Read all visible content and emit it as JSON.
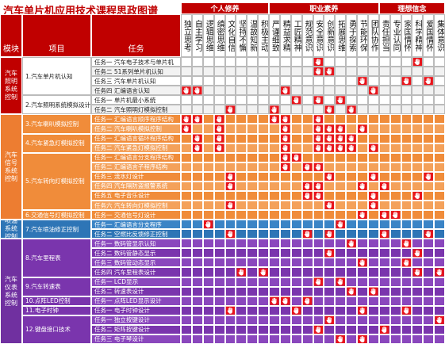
{
  "header": {
    "title": "汽车单片机应用技术课程思政图谱",
    "module_label": "模块",
    "project_label": "项目",
    "task_label": "任务",
    "groups": [
      {
        "name": "个人修养",
        "columns": [
          "独立思考",
          "自主学习",
          "逻辑思维",
          "缜密思维",
          "文化自信",
          "坚持不懈",
          "温故知新",
          "积极主动"
        ]
      },
      {
        "name": "职业素养",
        "columns": [
          "严谨细致",
          "精益求精",
          "工匠精神",
          "规范意识",
          "安全意识",
          "创新意识",
          "拓展思维",
          "勇于探索",
          "节能环保",
          "团队协作"
        ]
      },
      {
        "name": "理想信念",
        "columns": [
          "责任担当",
          "专业认同",
          "家国情怀",
          "科学精神",
          "爱国情怀",
          "集体意识"
        ]
      }
    ]
  },
  "modules": [
    {
      "name": "汽车照明系统控制",
      "projects": [
        {
          "name": "1.汽车单片机认知",
          "tasks": [
            {
              "name": "任务一 汽车电子技术与单片机",
              "marks": [
                12,
                21
              ]
            },
            {
              "name": "任务二 51系列单片机认知",
              "marks": [
                12,
                13
              ]
            },
            {
              "name": "任务三 汽车单片机认知",
              "marks": [
                16,
                20,
                22
              ]
            },
            {
              "name": "任务四 汇编语言认知",
              "marks": [
                0,
                1,
                9,
                17
              ]
            }
          ]
        },
        {
          "name": "2.汽车照明系统模拟设计",
          "tasks": [
            {
              "name": "任务一 单片机最小系统",
              "marks": [
                10,
                12,
                14
              ]
            },
            {
              "name": "任务二 汽车照明灯模拟控制",
              "marks": [
                4,
                8,
                13,
                15
              ]
            }
          ]
        }
      ]
    },
    {
      "name": "汽车信号系统控制",
      "projects": [
        {
          "name": "3.汽车喇叭模拟控制",
          "tasks": [
            {
              "name": "任务一 汇编语言顺序程序结构",
              "marks": [
                0,
                1,
                3,
                8,
                9,
                12
              ]
            },
            {
              "name": "任务二 汽车喇叭模拟控制",
              "marks": [
                0,
                3,
                9,
                12,
                13,
                14,
                16
              ]
            }
          ]
        },
        {
          "name": "4.汽车紧急灯模拟控制",
          "tasks": [
            {
              "name": "任务一 汇编语言循环程序结构",
              "marks": [
                1,
                3,
                9,
                12,
                13,
                14,
                15
              ]
            },
            {
              "name": "任务二 汽车紧急灯模拟控制",
              "marks": [
                1,
                3,
                9,
                12,
                13,
                14,
                15,
                17
              ]
            }
          ]
        },
        {
          "name": "5.汽车转向灯模拟控制",
          "tasks": [
            {
              "name": "任务一 汇编语言分支程序结构",
              "marks": [
                9,
                10
              ]
            },
            {
              "name": "任务二 汇编语言子程序结构",
              "marks": [
                9,
                11,
                12
              ]
            },
            {
              "name": "任务三 流水灯设计",
              "marks": [
                4,
                13,
                17,
                22
              ]
            },
            {
              "name": "任务四 汽车隔防盗报警系统",
              "marks": [
                4,
                11,
                12,
                16,
                18
              ]
            },
            {
              "name": "任务五 电子音乐设计",
              "marks": [
                11,
                12,
                17,
                21
              ]
            },
            {
              "name": "任务六 汽车转向灯模拟控制",
              "marks": [
                4,
                13,
                17
              ]
            }
          ]
        },
        {
          "name": "6.交通信号灯模拟控制",
          "tasks": [
            {
              "name": "任务一 交通信号灯设计",
              "marks": [
                16,
                18,
                19
              ]
            }
          ]
        }
      ]
    },
    {
      "name": "喷油系统控制",
      "projects": [
        {
          "name": "7.汽车喷油修正控制",
          "tasks": [
            {
              "name": "任务一 汇编语言分支程序",
              "marks": [
                2,
                14
              ]
            },
            {
              "name": "任务二 空燃比反馈修正控制",
              "marks": [
                4,
                11,
                13,
                18,
                22
              ]
            }
          ]
        }
      ]
    },
    {
      "name": "汽车仪表系统控制",
      "projects": [
        {
          "name": "8.汽车里程表",
          "tasks": [
            {
              "name": "任务一 数码管显示认知",
              "marks": [
                15,
                20
              ]
            },
            {
              "name": "任务二 数码管静态显示",
              "marks": [
                13,
                21
              ]
            },
            {
              "name": "任务三 数码管动态显示",
              "marks": [
                16,
                20
              ]
            },
            {
              "name": "任务四 汽车里程表设计",
              "marks": [
                5,
                7,
                21,
                23
              ]
            }
          ]
        },
        {
          "name": "9.汽车转速表",
          "tasks": [
            {
              "name": "任务一 LCD显示",
              "marks": [
                12,
                14
              ]
            },
            {
              "name": "任务二 转速表设计",
              "marks": [
                15,
                17
              ]
            }
          ]
        },
        {
          "name": "10.点阵LED控制",
          "tasks": [
            {
              "name": "任务一 点阵LED显示设计",
              "marks": [
                8,
                9,
                11
              ]
            }
          ]
        },
        {
          "name": "11.电子时钟",
          "tasks": [
            {
              "name": "任务一 电子时钟设计",
              "marks": [
                4,
                10,
                16,
                20
              ]
            }
          ]
        },
        {
          "name": "12.键盘接口技术",
          "tasks": [
            {
              "name": "任务一 独立按键设计",
              "marks": [
                13,
                23
              ]
            },
            {
              "name": "任务二 矩阵按键设计",
              "marks": [
                12,
                18
              ]
            },
            {
              "name": "任务三 电子琴设计",
              "marks": [
                14,
                16
              ]
            }
          ]
        }
      ]
    }
  ]
}
